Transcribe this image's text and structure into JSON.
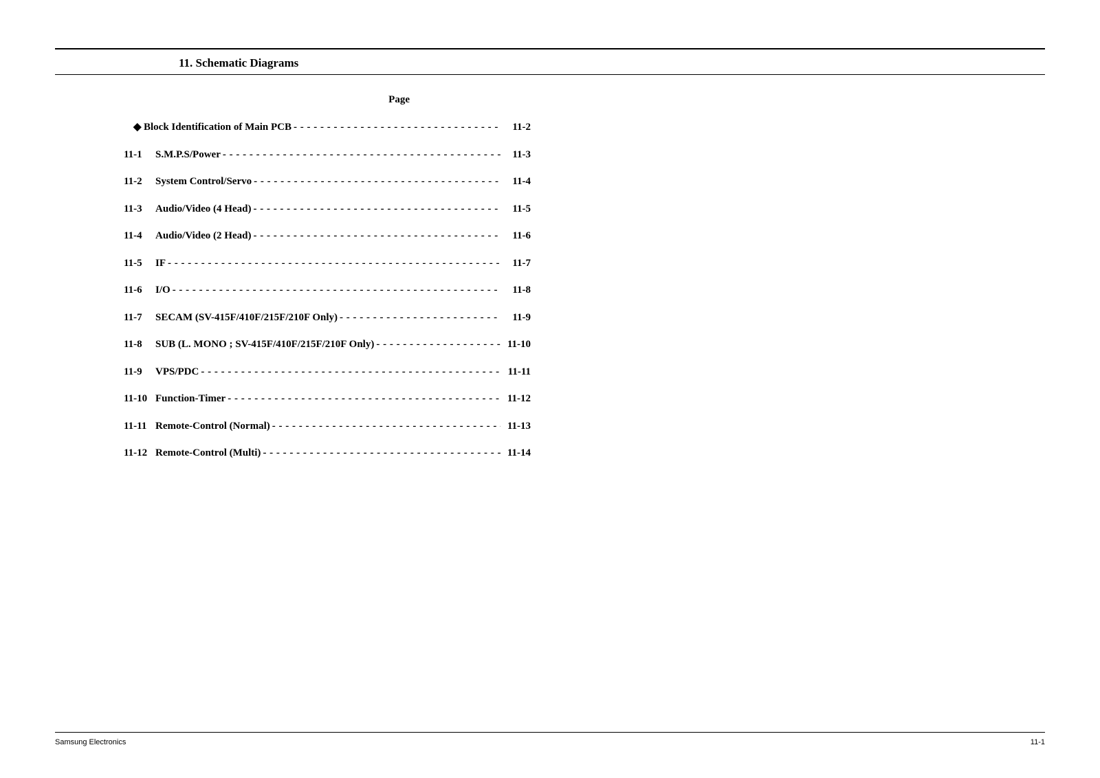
{
  "chapter_title": "11. Schematic Diagrams",
  "page_label": "Page",
  "toc": [
    {
      "num": "",
      "bullet": "◆",
      "title": "Block Identification of Main PCB",
      "page": "11-2"
    },
    {
      "num": "11-1",
      "bullet": "",
      "title": "S.M.P.S/Power",
      "page": "11-3"
    },
    {
      "num": "11-2",
      "bullet": "",
      "title": "System Control/Servo",
      "page": "11-4"
    },
    {
      "num": "11-3",
      "bullet": "",
      "title": "Audio/Video (4 Head)",
      "page": "11-5"
    },
    {
      "num": "11-4",
      "bullet": "",
      "title": "Audio/Video (2 Head)",
      "page": "11-6"
    },
    {
      "num": "11-5",
      "bullet": "",
      "title": "IF",
      "page": "11-7"
    },
    {
      "num": "11-6",
      "bullet": "",
      "title": "I/O",
      "page": "11-8"
    },
    {
      "num": "11-7",
      "bullet": "",
      "title": "SECAM (SV-415F/410F/215F/210F Only)",
      "page": "11-9"
    },
    {
      "num": "11-8",
      "bullet": "",
      "title": "SUB (L. MONO ; SV-415F/410F/215F/210F Only)",
      "page": "11-10"
    },
    {
      "num": "11-9",
      "bullet": "",
      "title": "VPS/PDC",
      "page": "11-11"
    },
    {
      "num": "11-10",
      "bullet": "",
      "title": "Function-Timer",
      "page": "11-12"
    },
    {
      "num": "11-11",
      "bullet": "",
      "title": "Remote-Control (Normal)",
      "page": "11-13"
    },
    {
      "num": "11-12",
      "bullet": "",
      "title": "Remote-Control (Multi)",
      "page": "11-14"
    }
  ],
  "footer": {
    "left": "Samsung Electronics",
    "right": "11-1"
  }
}
